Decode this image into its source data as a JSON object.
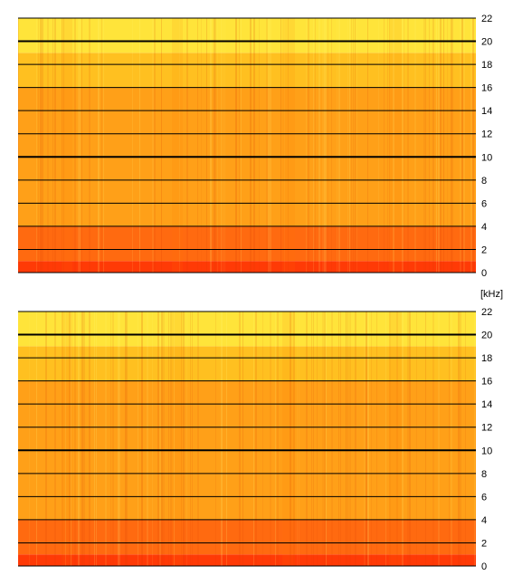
{
  "chart_data": [
    {
      "type": "heatmap",
      "channel": "top",
      "y_unit": "[kHz]",
      "ylim": [
        0,
        22
      ],
      "y_ticks": [
        0,
        2,
        4,
        6,
        8,
        10,
        12,
        14,
        16,
        18,
        20,
        22
      ],
      "major_gridlines": [
        10,
        20
      ],
      "grid": true,
      "colormap": [
        "#ff2a00",
        "#ff6a00",
        "#ff9a10",
        "#ffc820",
        "#ffff40"
      ],
      "bands": [
        {
          "from_khz": 0,
          "to_khz": 1,
          "color": "#ff3a06"
        },
        {
          "from_khz": 1,
          "to_khz": 4,
          "color": "#ff6a10"
        },
        {
          "from_khz": 4,
          "to_khz": 16,
          "color": "#ffa018"
        },
        {
          "from_khz": 16,
          "to_khz": 19,
          "color": "#ffc020"
        },
        {
          "from_khz": 19,
          "to_khz": 22,
          "color": "#ffe43a"
        }
      ]
    },
    {
      "type": "heatmap",
      "channel": "bottom",
      "y_unit": "",
      "ylim": [
        0,
        22
      ],
      "y_ticks": [
        0,
        2,
        4,
        6,
        8,
        10,
        12,
        14,
        16,
        18,
        20,
        22
      ],
      "major_gridlines": [
        10,
        20
      ],
      "grid": true,
      "colormap": [
        "#ff2a00",
        "#ff6a00",
        "#ff9a10",
        "#ffc820",
        "#ffff40"
      ],
      "bands": [
        {
          "from_khz": 0,
          "to_khz": 1,
          "color": "#ff3a06"
        },
        {
          "from_khz": 1,
          "to_khz": 4,
          "color": "#ff6a10"
        },
        {
          "from_khz": 4,
          "to_khz": 16,
          "color": "#ffa018"
        },
        {
          "from_khz": 16,
          "to_khz": 19,
          "color": "#ffc020"
        },
        {
          "from_khz": 19,
          "to_khz": 22,
          "color": "#ffe43a"
        }
      ]
    }
  ]
}
